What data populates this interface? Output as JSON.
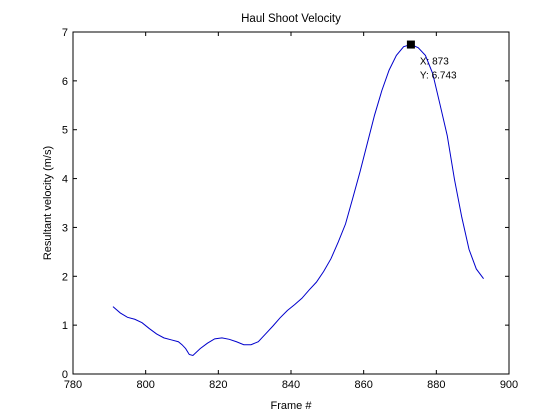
{
  "chart_data": {
    "type": "line",
    "title": "Haul Shoot Velocity",
    "xlabel": "Frame #",
    "ylabel": "Resultant velocity (m/s)",
    "xlim": [
      780,
      900
    ],
    "ylim": [
      0,
      7
    ],
    "xticks": [
      "780",
      "800",
      "820",
      "840",
      "860",
      "880",
      "900"
    ],
    "yticks": [
      "0",
      "1",
      "2",
      "3",
      "4",
      "5",
      "6",
      "7"
    ],
    "grid": false,
    "series": [
      {
        "color": "#0000cc",
        "x": [
          791,
          793,
          795,
          797,
          799,
          801,
          803,
          805,
          807,
          809,
          810,
          811,
          812,
          813,
          815,
          817,
          819,
          821,
          823,
          825,
          827,
          829,
          831,
          833,
          835,
          837,
          839,
          841,
          843,
          845,
          847,
          849,
          851,
          853,
          855,
          857,
          859,
          861,
          863,
          865,
          867,
          869,
          871,
          873,
          875,
          877,
          879,
          881,
          883,
          885,
          887,
          889,
          891,
          893
        ],
        "values": [
          1.38,
          1.25,
          1.16,
          1.12,
          1.05,
          0.93,
          0.82,
          0.74,
          0.7,
          0.66,
          0.6,
          0.52,
          0.4,
          0.38,
          0.52,
          0.63,
          0.72,
          0.74,
          0.71,
          0.66,
          0.6,
          0.6,
          0.66,
          0.82,
          0.98,
          1.15,
          1.3,
          1.42,
          1.55,
          1.72,
          1.88,
          2.1,
          2.36,
          2.7,
          3.07,
          3.6,
          4.14,
          4.72,
          5.3,
          5.8,
          6.22,
          6.52,
          6.7,
          6.743,
          6.68,
          6.52,
          6.15,
          5.52,
          4.88,
          3.98,
          3.21,
          2.55,
          2.15,
          1.95
        ]
      }
    ],
    "datatip": {
      "x": 873,
      "y": 6.743,
      "x_text": "X: 873",
      "y_text": "Y: 6.743"
    }
  }
}
